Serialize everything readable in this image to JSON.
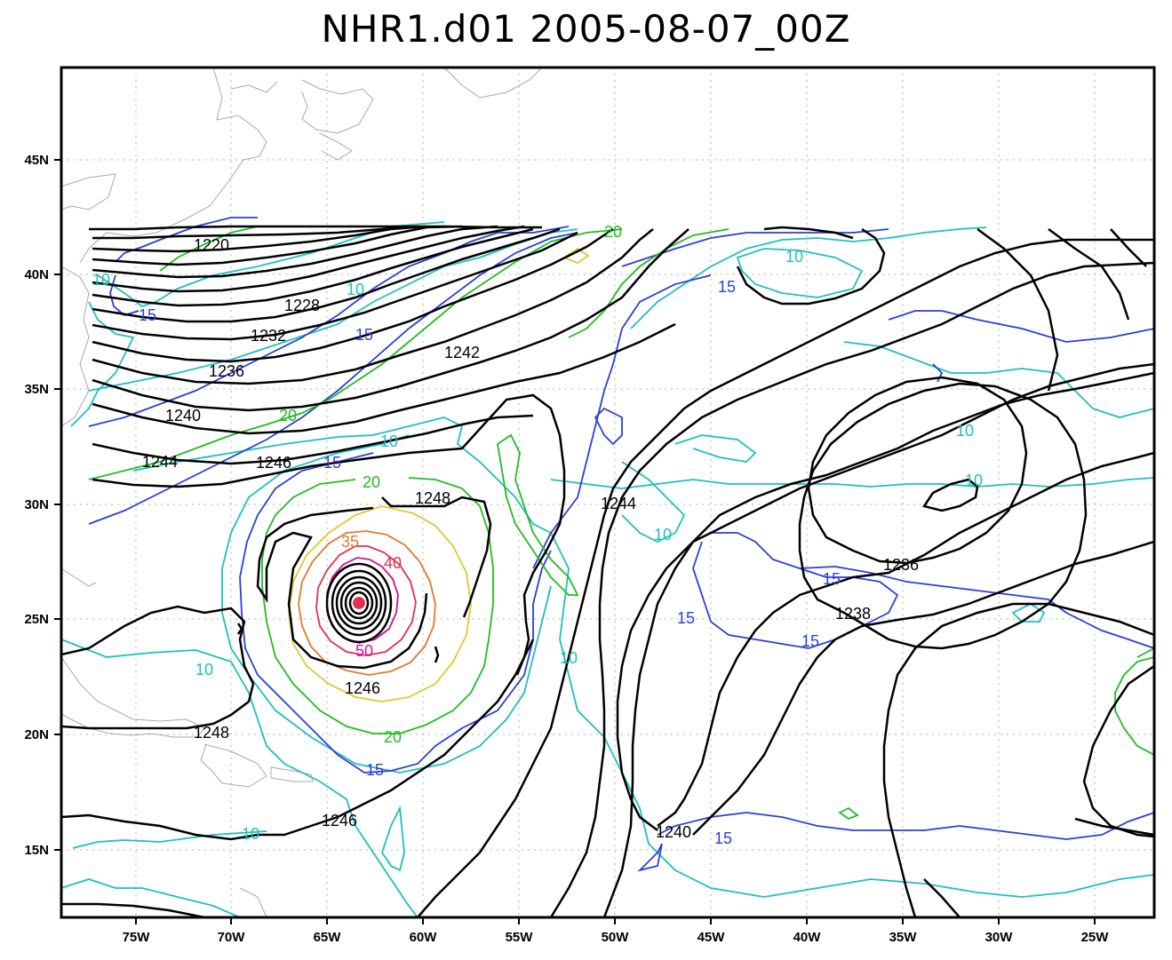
{
  "title": "NHR1.d01 2005-08-07_00Z",
  "axes": {
    "x_ticks": [
      "75W",
      "70W",
      "65W",
      "60W",
      "55W",
      "50W",
      "45W",
      "40W",
      "35W",
      "30W",
      "25W"
    ],
    "y_ticks": [
      "15N",
      "20N",
      "25N",
      "30N",
      "35N",
      "40N",
      "45N"
    ]
  },
  "colors": {
    "height_contour": "#000000",
    "wind_10": "#1fbfbf",
    "wind_15": "#2b3fd6",
    "wind_20": "#22bb22",
    "wind_30": "#e0c830",
    "wind_35": "#e07a30",
    "wind_40": "#e03050",
    "wind_50": "#d0109a",
    "coastline": "#a8a8a8"
  },
  "height_labels": [
    "1220",
    "1228",
    "1232",
    "1236",
    "1240",
    "1244",
    "1246",
    "1242",
    "1248",
    "1244",
    "1236",
    "1238",
    "1246",
    "1248",
    "1246",
    "1240"
  ],
  "wind_labels": [
    "10",
    "15",
    "10",
    "15",
    "20",
    "10",
    "15",
    "20",
    "35",
    "40",
    "50",
    "10",
    "20",
    "15",
    "10",
    "15",
    "20",
    "10",
    "10",
    "10",
    "15",
    "15",
    "15",
    "10",
    "15",
    "10"
  ]
}
